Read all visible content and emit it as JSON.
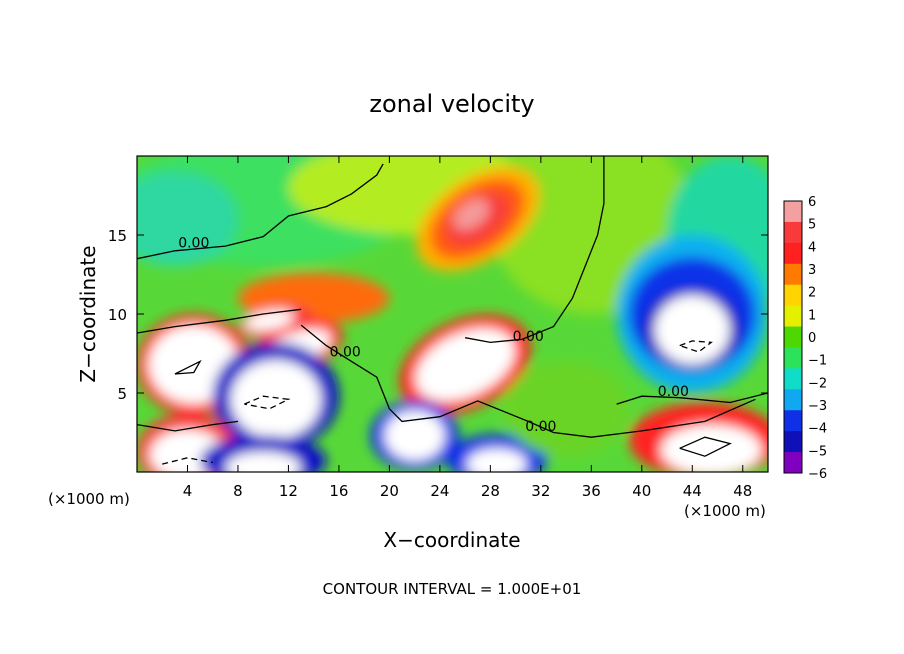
{
  "chart_data": {
    "type": "heatmap",
    "title": "zonal velocity",
    "xlabel": "X−coordinate",
    "ylabel": "Z−coordinate",
    "x_unit_left": "(×1000 m)",
    "x_unit_right": "(×1000 m)",
    "footer": "CONTOUR INTERVAL = 1.000E+01",
    "xlim": [
      0,
      50
    ],
    "ylim": [
      0,
      20
    ],
    "x_ticks": [
      4,
      8,
      12,
      16,
      20,
      24,
      28,
      32,
      36,
      40,
      44,
      48
    ],
    "x_tick_labels": [
      "4",
      "8",
      "12",
      "16",
      "20",
      "24",
      "28",
      "32",
      "36",
      "40",
      "44",
      "48"
    ],
    "y_ticks": [
      5,
      10,
      15
    ],
    "y_tick_labels": [
      "5",
      "10",
      "15"
    ],
    "colorbar": {
      "levels": [
        6,
        5,
        4,
        3,
        2,
        1,
        0,
        -1,
        -2,
        -3,
        -4,
        -5,
        -6
      ],
      "labels": [
        "6",
        "5",
        "4",
        "3",
        "2",
        "1",
        "0",
        "−1",
        "−2",
        "−3",
        "−4",
        "−5",
        "−6"
      ],
      "colors": [
        "#f4a0a0",
        "#f83a3a",
        "#ff2020",
        "#ff7a00",
        "#ffd400",
        "#e4f000",
        "#4cd800",
        "#2ce25a",
        "#10ddc8",
        "#10a8f0",
        "#1030e8",
        "#1010b8",
        "#8000c0"
      ]
    },
    "contour_labels": [
      {
        "text": "0.00",
        "x": 4.5,
        "y": 14.2
      },
      {
        "text": "0.00",
        "x": 16.5,
        "y": 7.3
      },
      {
        "text": "0.00",
        "x": 31.0,
        "y": 8.3
      },
      {
        "text": "0.00",
        "x": 42.5,
        "y": 4.8
      },
      {
        "text": "0.00",
        "x": 32.0,
        "y": 2.6
      }
    ],
    "features": [
      {
        "kind": "max",
        "x": 27,
        "y": 16,
        "value": 6
      },
      {
        "kind": "min",
        "x": 44,
        "y": 9,
        "value": -6
      },
      {
        "kind": "min",
        "x": 44,
        "y": 2.5,
        "value": -6
      },
      {
        "kind": "min",
        "x": 11,
        "y": 5.5,
        "value": -6
      },
      {
        "kind": "max",
        "x": 4.5,
        "y": 6.8,
        "value": 6
      },
      {
        "kind": "max",
        "x": 26,
        "y": 7,
        "value": 6
      },
      {
        "kind": "max",
        "x": 12.5,
        "y": 7.8,
        "value": 6
      },
      {
        "kind": "max",
        "x": 10,
        "y": 9.7,
        "value": 6
      },
      {
        "kind": "max",
        "x": 45,
        "y": 1.6,
        "value": 5
      },
      {
        "kind": "max",
        "x": 22,
        "y": 2.3,
        "value": 6
      },
      {
        "kind": "max",
        "x": 4,
        "y": 1.3,
        "value": 6
      },
      {
        "kind": "max",
        "x": 10,
        "y": 0.6,
        "value": 6
      },
      {
        "kind": "max",
        "x": 28.5,
        "y": 0.6,
        "value": 6
      },
      {
        "kind": "max",
        "x": 12,
        "y": 11.5,
        "value": 4
      }
    ]
  }
}
